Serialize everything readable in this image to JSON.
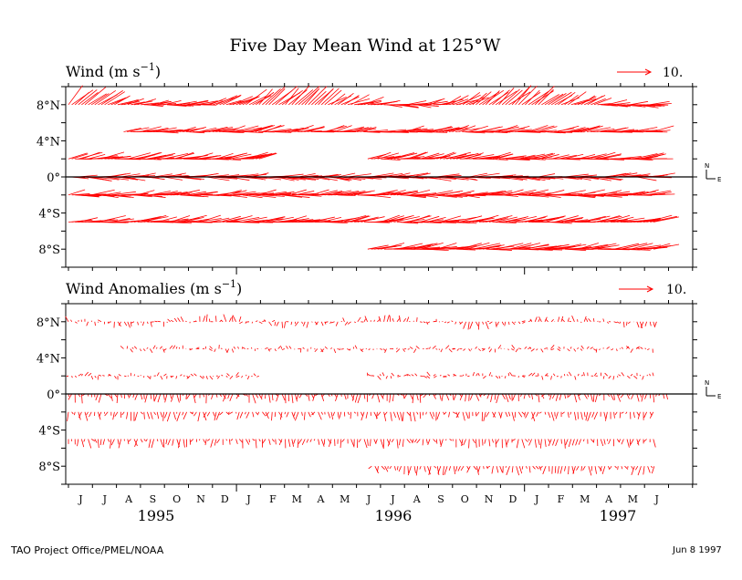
{
  "chart_data": {
    "type": "vector",
    "title": "Five Day Mean Wind at 125°W",
    "months": [
      "J",
      "J",
      "A",
      "S",
      "O",
      "N",
      "D",
      "J",
      "F",
      "M",
      "A",
      "M",
      "J",
      "J",
      "A",
      "S",
      "O",
      "N",
      "D",
      "J",
      "F",
      "M",
      "A",
      "M",
      "J"
    ],
    "years": [
      "1995",
      "1996",
      "1997"
    ],
    "latitude_labels": [
      "8°N",
      "4°N",
      "0°",
      "4°S",
      "8°S"
    ],
    "latitudes": [
      8,
      5,
      2,
      0,
      -2,
      -5,
      -8
    ],
    "x_range": [
      "1995-06",
      "1997-07"
    ],
    "y_range": [
      -10,
      10
    ],
    "arrow_color": "#ff0000",
    "panels": [
      {
        "title": "Wind (m s⁻¹)",
        "title_main": "Wind (m s",
        "title_exp": "−1",
        "title_close": ")",
        "reference_label": "10.",
        "reference_speed": 10,
        "compass_n": "N",
        "compass_e": "E",
        "series": [
          {
            "lat": 8,
            "periods": [
              [
                "1995-06-01",
                "1997-06-15"
              ]
            ],
            "mean_u": -6,
            "mean_v": 3
          },
          {
            "lat": 5,
            "periods": [
              [
                "1995-08-10",
                "1997-06-15"
              ]
            ],
            "mean_u": -7,
            "mean_v": 1
          },
          {
            "lat": 2,
            "periods": [
              [
                "1995-06-01",
                "1996-02-01"
              ],
              [
                "1996-06-15",
                "1997-06-15"
              ]
            ],
            "mean_u": -7,
            "mean_v": 1
          },
          {
            "lat": 0,
            "periods": [
              [
                "1995-06-01",
                "1997-06-15"
              ]
            ],
            "mean_u": -7,
            "mean_v": 0
          },
          {
            "lat": -2,
            "periods": [
              [
                "1995-06-01",
                "1997-06-15"
              ]
            ],
            "mean_u": -7,
            "mean_v": 0.5
          },
          {
            "lat": -5,
            "periods": [
              [
                "1995-06-01",
                "1997-06-15"
              ]
            ],
            "mean_u": -8,
            "mean_v": 1
          },
          {
            "lat": -8,
            "periods": [
              [
                "1996-06-15",
                "1997-06-15"
              ]
            ],
            "mean_u": -8,
            "mean_v": 1
          }
        ]
      },
      {
        "title": "Wind Anomalies (m s⁻¹)",
        "title_main": "Wind Anomalies (m s",
        "title_exp": "−1",
        "title_close": ")",
        "reference_label": "10.",
        "reference_speed": 10,
        "compass_n": "N",
        "compass_e": "E",
        "series": [
          {
            "lat": 8,
            "periods": [
              [
                "1995-06-01",
                "1997-06-20"
              ]
            ],
            "mean_u": 0,
            "mean_v": 0
          },
          {
            "lat": 5,
            "periods": [
              [
                "1995-08-10",
                "1997-06-15"
              ]
            ],
            "mean_u": 0,
            "mean_v": 0
          },
          {
            "lat": 2,
            "periods": [
              [
                "1995-06-01",
                "1996-02-01"
              ],
              [
                "1996-06-15",
                "1997-06-15"
              ]
            ],
            "mean_u": 0,
            "mean_v": 0
          },
          {
            "lat": 0,
            "periods": [
              [
                "1995-06-01",
                "1997-07-01"
              ]
            ],
            "mean_u": 0,
            "mean_v": -1
          },
          {
            "lat": -2,
            "periods": [
              [
                "1995-06-01",
                "1997-06-15"
              ]
            ],
            "mean_u": 0,
            "mean_v": -1
          },
          {
            "lat": -5,
            "periods": [
              [
                "1995-06-01",
                "1997-06-15"
              ]
            ],
            "mean_u": 0,
            "mean_v": -1
          },
          {
            "lat": -8,
            "periods": [
              [
                "1996-06-20",
                "1997-06-15"
              ]
            ],
            "mean_u": 0,
            "mean_v": -1
          }
        ]
      }
    ]
  },
  "footer": {
    "credit": "TAO Project Office/PMEL/NOAA",
    "date": "Jun  8 1997"
  }
}
